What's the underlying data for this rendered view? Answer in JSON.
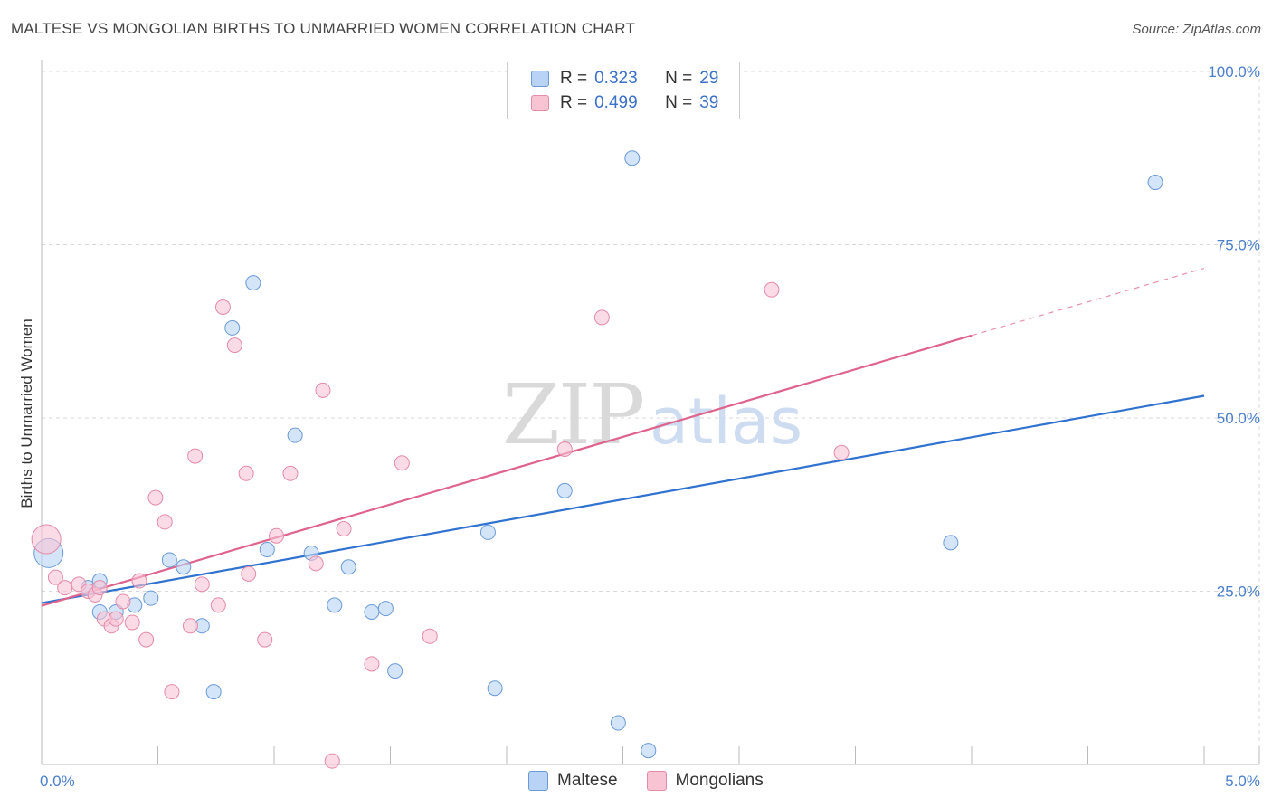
{
  "title": "MALTESE VS MONGOLIAN BIRTHS TO UNMARRIED WOMEN CORRELATION CHART",
  "source": "Source: ZipAtlas.com",
  "watermark": {
    "zip": "ZIP",
    "atlas": "atlas"
  },
  "legend": {
    "r_label": "R =",
    "n_label": "N =",
    "rows": [
      {
        "series": "Maltese",
        "r": "0.323",
        "n": "29"
      },
      {
        "series": "Mongolians",
        "r": "0.499",
        "n": "39"
      }
    ]
  },
  "colors": {
    "maltese_fill": "#b8d3f5",
    "maltese_stroke": "#6a9ad8",
    "maltese_line": "#2f72d0",
    "mongolian_fill": "#f8c3d3",
    "mongolian_stroke": "#e58aa8",
    "mongolian_line": "#e0638c",
    "grid": "#d8d8d8",
    "tick_text": "#4a7fcc"
  },
  "chart_data": {
    "type": "scatter",
    "title": "MALTESE VS MONGOLIAN BIRTHS TO UNMARRIED WOMEN CORRELATION CHART",
    "xlabel": "",
    "ylabel": "Births to Unmarried Women",
    "xlim": [
      0,
      5
    ],
    "ylim": [
      0,
      100
    ],
    "x_tick_labels": [
      "0.0%",
      "5.0%"
    ],
    "y_ticks": [
      25,
      50,
      75,
      100
    ],
    "y_tick_labels": [
      "25.0%",
      "50.0%",
      "75.0%",
      "100.0%"
    ],
    "legend_position": "top-center",
    "series": [
      {
        "name": "Maltese",
        "points": [
          {
            "x": 0.03,
            "y": 30.5,
            "big": true
          },
          {
            "x": 0.2,
            "y": 25.5
          },
          {
            "x": 0.25,
            "y": 22
          },
          {
            "x": 0.25,
            "y": 26.5
          },
          {
            "x": 0.32,
            "y": 22
          },
          {
            "x": 0.4,
            "y": 23
          },
          {
            "x": 0.47,
            "y": 24
          },
          {
            "x": 0.55,
            "y": 29.5
          },
          {
            "x": 0.61,
            "y": 28.5
          },
          {
            "x": 0.69,
            "y": 20
          },
          {
            "x": 0.74,
            "y": 10.5
          },
          {
            "x": 0.82,
            "y": 63
          },
          {
            "x": 0.91,
            "y": 69.5
          },
          {
            "x": 0.97,
            "y": 31
          },
          {
            "x": 1.09,
            "y": 47.5
          },
          {
            "x": 1.16,
            "y": 30.5
          },
          {
            "x": 1.26,
            "y": 23
          },
          {
            "x": 1.32,
            "y": 28.5
          },
          {
            "x": 1.42,
            "y": 22
          },
          {
            "x": 1.48,
            "y": 22.5
          },
          {
            "x": 1.52,
            "y": 13.5
          },
          {
            "x": 1.92,
            "y": 33.5
          },
          {
            "x": 1.95,
            "y": 11
          },
          {
            "x": 2.25,
            "y": 39.5
          },
          {
            "x": 2.48,
            "y": 6
          },
          {
            "x": 2.54,
            "y": 87.5
          },
          {
            "x": 2.61,
            "y": 2
          },
          {
            "x": 3.91,
            "y": 32
          },
          {
            "x": 4.79,
            "y": 84
          }
        ]
      },
      {
        "name": "Mongolians",
        "points": [
          {
            "x": 0.02,
            "y": 32.5,
            "big": true
          },
          {
            "x": 0.06,
            "y": 27
          },
          {
            "x": 0.1,
            "y": 25.5
          },
          {
            "x": 0.16,
            "y": 26
          },
          {
            "x": 0.2,
            "y": 25
          },
          {
            "x": 0.23,
            "y": 24.5
          },
          {
            "x": 0.25,
            "y": 25.5
          },
          {
            "x": 0.27,
            "y": 21
          },
          {
            "x": 0.3,
            "y": 20
          },
          {
            "x": 0.32,
            "y": 21
          },
          {
            "x": 0.35,
            "y": 23.5
          },
          {
            "x": 0.39,
            "y": 20.5
          },
          {
            "x": 0.42,
            "y": 26.5
          },
          {
            "x": 0.45,
            "y": 18
          },
          {
            "x": 0.49,
            "y": 38.5
          },
          {
            "x": 0.53,
            "y": 35
          },
          {
            "x": 0.56,
            "y": 10.5
          },
          {
            "x": 0.64,
            "y": 20
          },
          {
            "x": 0.66,
            "y": 44.5
          },
          {
            "x": 0.69,
            "y": 26
          },
          {
            "x": 0.76,
            "y": 23
          },
          {
            "x": 0.78,
            "y": 66
          },
          {
            "x": 0.83,
            "y": 60.5
          },
          {
            "x": 0.88,
            "y": 42
          },
          {
            "x": 0.89,
            "y": 27.5
          },
          {
            "x": 0.96,
            "y": 18
          },
          {
            "x": 1.01,
            "y": 33
          },
          {
            "x": 1.07,
            "y": 42
          },
          {
            "x": 1.18,
            "y": 29
          },
          {
            "x": 1.21,
            "y": 54
          },
          {
            "x": 1.25,
            "y": 0.5
          },
          {
            "x": 1.3,
            "y": 34
          },
          {
            "x": 1.42,
            "y": 14.5
          },
          {
            "x": 1.55,
            "y": 43.5
          },
          {
            "x": 1.67,
            "y": 18.5
          },
          {
            "x": 2.25,
            "y": 45.5
          },
          {
            "x": 2.41,
            "y": 64.5
          },
          {
            "x": 3.14,
            "y": 68.5
          },
          {
            "x": 3.44,
            "y": 45
          }
        ]
      }
    ],
    "trendlines": [
      {
        "series": "Maltese",
        "x0": 0,
        "y0": 23.3,
        "x1": 5.0,
        "y1": 53.2
      },
      {
        "series": "Mongolians",
        "x0": 0,
        "y0": 22.9,
        "x1": 4.0,
        "y1": 61.9,
        "dash_to_x": 5.0,
        "dash_to_y": 71.6
      }
    ]
  }
}
